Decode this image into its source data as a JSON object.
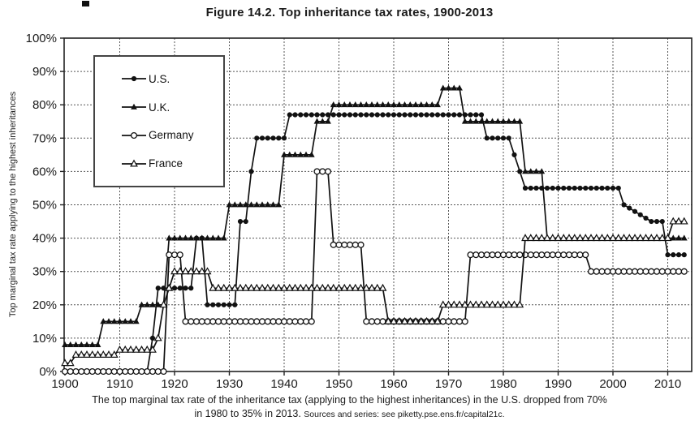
{
  "page_title": "Figure 14.2. Top inheritance tax rates, 1900-2013",
  "caption": {
    "line1": "The top marginal tax rate of the inheritance tax (applying to the highest inheritances) in the U.S. dropped from 70%",
    "line2_main": "in 1980 to 35% in 2013.",
    "line2_source": "Sources and series: see piketty.pse.ens.fr/capital21c."
  },
  "colors": {
    "series_line": "#111111",
    "grid": "#555555",
    "frame": "#222222",
    "text": "#1a1a1a",
    "background": "#ffffff"
  },
  "chart_data": {
    "type": "line",
    "title": "Figure 14.2. Top inheritance tax rates, 1900-2013",
    "xlabel": "",
    "ylabel": "Top marginal tax rate applying to the highest inheritances",
    "xlim": [
      1900,
      2013
    ],
    "ylim": [
      0,
      100
    ],
    "x_ticks": [
      1900,
      1910,
      1920,
      1930,
      1940,
      1950,
      1960,
      1970,
      1980,
      1990,
      2000,
      2010
    ],
    "y_ticks": [
      0,
      10,
      20,
      30,
      40,
      50,
      60,
      70,
      80,
      90,
      100
    ],
    "y_tick_suffix": "%",
    "grid": "dashed-both-axes",
    "legend_position": "top-left-inside",
    "marker_every_year": true,
    "series": [
      {
        "name": "U.S.",
        "marker": "filled-circle",
        "segments": [
          [
            1900,
            1915,
            0
          ],
          [
            1916,
            1916,
            10
          ],
          [
            1917,
            1923,
            25
          ],
          [
            1924,
            1925,
            40
          ],
          [
            1926,
            1931,
            20
          ],
          [
            1932,
            1933,
            45
          ],
          [
            1934,
            1934,
            60
          ],
          [
            1935,
            1940,
            70
          ],
          [
            1941,
            1976,
            77
          ],
          [
            1977,
            1981,
            70
          ],
          [
            1982,
            1982,
            65
          ],
          [
            1983,
            1983,
            60
          ],
          [
            1984,
            2001,
            55
          ],
          [
            2002,
            2002,
            50
          ],
          [
            2003,
            2003,
            49
          ],
          [
            2004,
            2004,
            48
          ],
          [
            2005,
            2005,
            47
          ],
          [
            2006,
            2006,
            46
          ],
          [
            2007,
            2009,
            45
          ],
          [
            2010,
            2013,
            35
          ]
        ]
      },
      {
        "name": "U.K.",
        "marker": "filled-triangle",
        "segments": [
          [
            1900,
            1906,
            8
          ],
          [
            1907,
            1913,
            15
          ],
          [
            1914,
            1918,
            20
          ],
          [
            1919,
            1929,
            40
          ],
          [
            1930,
            1939,
            50
          ],
          [
            1940,
            1945,
            65
          ],
          [
            1946,
            1948,
            75
          ],
          [
            1949,
            1968,
            80
          ],
          [
            1969,
            1972,
            85
          ],
          [
            1973,
            1983,
            75
          ],
          [
            1984,
            1987,
            60
          ],
          [
            1988,
            2013,
            40
          ]
        ]
      },
      {
        "name": "Germany",
        "marker": "open-circle",
        "segments": [
          [
            1900,
            1918,
            0
          ],
          [
            1919,
            1921,
            35
          ],
          [
            1922,
            1945,
            15
          ],
          [
            1946,
            1948,
            60
          ],
          [
            1949,
            1954,
            38
          ],
          [
            1955,
            1973,
            15
          ],
          [
            1974,
            1995,
            35
          ],
          [
            1996,
            2013,
            30
          ]
        ]
      },
      {
        "name": "France",
        "marker": "open-triangle",
        "segments": [
          [
            1900,
            1901,
            2.5
          ],
          [
            1902,
            1909,
            5
          ],
          [
            1910,
            1916,
            6.5
          ],
          [
            1917,
            1917,
            10
          ],
          [
            1918,
            1918,
            20
          ],
          [
            1919,
            1919,
            25
          ],
          [
            1920,
            1926,
            30
          ],
          [
            1927,
            1958,
            25
          ],
          [
            1959,
            1968,
            15
          ],
          [
            1969,
            1983,
            20
          ],
          [
            1984,
            2010,
            40
          ],
          [
            2011,
            2013,
            45
          ]
        ]
      }
    ]
  }
}
